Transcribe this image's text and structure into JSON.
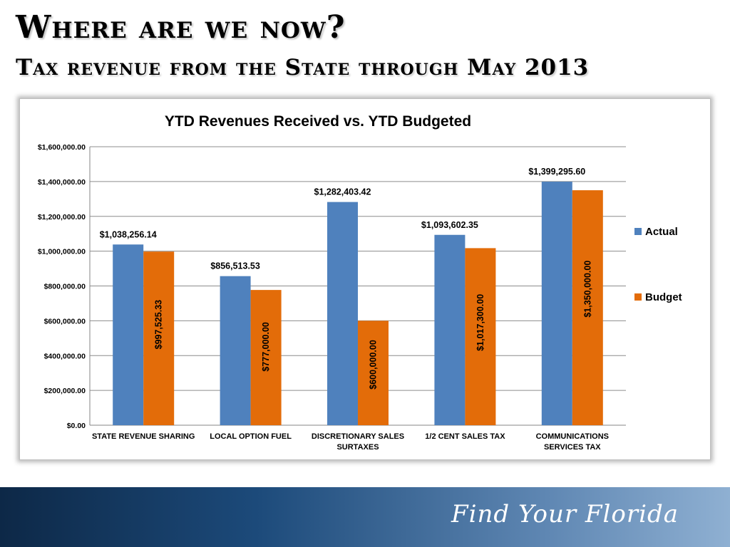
{
  "slide": {
    "title": "Where are we now?",
    "subtitle": "Tax revenue from the State through May 2013",
    "footer_brand": "Find Your Florida"
  },
  "colors": {
    "actual": "#4f81bd",
    "budget": "#e36c09",
    "footer_dark": "#0d2847",
    "footer_light": "#8fb0d2"
  },
  "chart_data": {
    "type": "bar",
    "title": "YTD Revenues Received vs. YTD Budgeted",
    "xlabel": "",
    "ylabel": "",
    "ylim": [
      0,
      1600000
    ],
    "yticks": [
      0,
      200000,
      400000,
      600000,
      800000,
      1000000,
      1200000,
      1400000,
      1600000
    ],
    "ytick_labels": [
      "$0.00",
      "$200,000.00",
      "$400,000.00",
      "$600,000.00",
      "$800,000.00",
      "$1,000,000.00",
      "$1,200,000.00",
      "$1,400,000.00",
      "$1,600,000.00"
    ],
    "grid": true,
    "legend_position": "right",
    "categories": [
      [
        "STATE REVENUE SHARING"
      ],
      [
        "LOCAL OPTION FUEL"
      ],
      [
        "DISCRETIONARY SALES",
        "SURTAXES"
      ],
      [
        "1/2 CENT SALES TAX"
      ],
      [
        "COMMUNICATIONS",
        "SERVICES TAX"
      ]
    ],
    "series": [
      {
        "name": "Actual",
        "values": [
          1038256.14,
          856513.53,
          1282403.42,
          1093602.35,
          1399295.6
        ],
        "labels": [
          "$1,038,256.14",
          "$856,513.53",
          "$1,282,403.42",
          "$1,093,602.35",
          "$1,399,295.60"
        ],
        "label_position": "above"
      },
      {
        "name": "Budget",
        "values": [
          997525.33,
          777000.0,
          600000.0,
          1017300.0,
          1350000.0
        ],
        "labels": [
          "$997,525.33",
          "$777,000.00",
          "$600,000.00",
          "$1,017,300.00",
          "$1,350,000.00"
        ],
        "label_position": "inside-vertical"
      }
    ]
  }
}
